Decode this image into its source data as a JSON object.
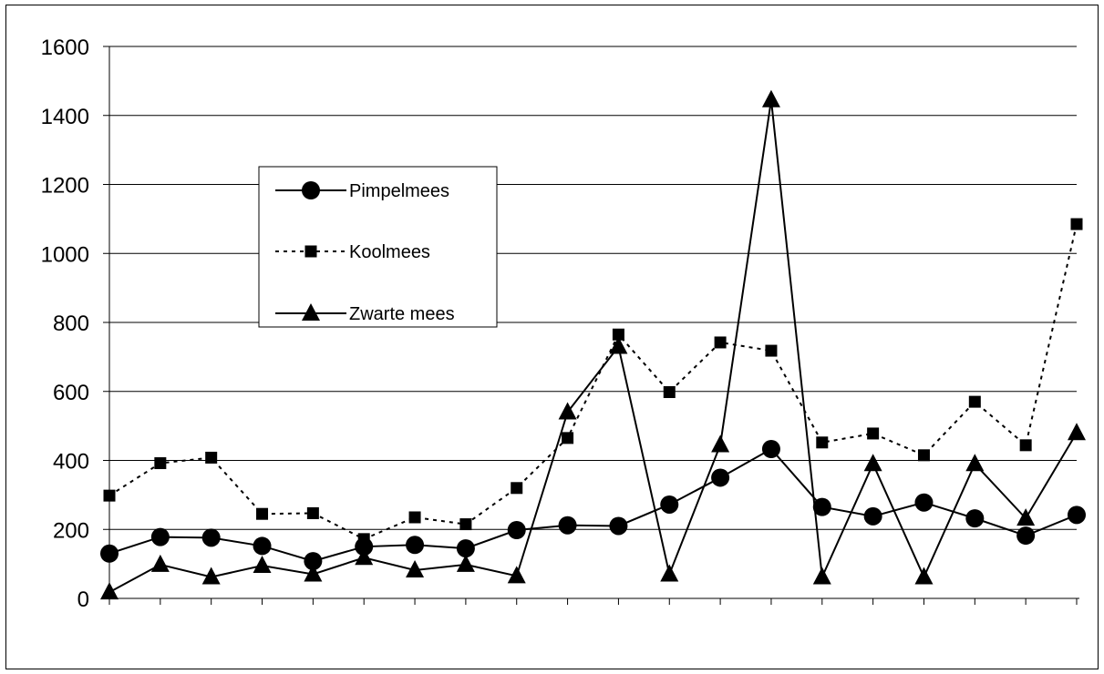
{
  "chart_data": {
    "type": "line",
    "title": "",
    "xlabel": "",
    "ylabel": "",
    "ylim": [
      0,
      1600
    ],
    "yticks": [
      0,
      200,
      400,
      600,
      800,
      1000,
      1200,
      1400,
      1600
    ],
    "x": [
      1,
      2,
      3,
      4,
      5,
      6,
      7,
      8,
      9,
      10,
      11,
      12,
      13,
      14,
      15,
      16,
      17,
      18,
      19,
      20
    ],
    "grid": "horizontal",
    "legend": "upper-left",
    "series": [
      {
        "name": "Pimpelmees",
        "line": "solid",
        "marker": "circle",
        "color": "#000000",
        "values": [
          130,
          178,
          176,
          152,
          108,
          150,
          155,
          145,
          198,
          212,
          210,
          272,
          350,
          433,
          265,
          238,
          278,
          232,
          182,
          242
        ]
      },
      {
        "name": "Koolmees",
        "line": "dotted",
        "marker": "square",
        "color": "#000000",
        "values": [
          298,
          392,
          408,
          245,
          247,
          172,
          235,
          215,
          320,
          465,
          765,
          598,
          742,
          718,
          452,
          478,
          415,
          570,
          444,
          1085
        ]
      },
      {
        "name": "Zwarte mees",
        "line": "solid",
        "marker": "triangle",
        "color": "#000000",
        "values": [
          18,
          98,
          62,
          95,
          70,
          118,
          82,
          98,
          65,
          540,
          730,
          70,
          445,
          1445,
          62,
          390,
          62,
          390,
          232,
          480
        ]
      }
    ]
  }
}
